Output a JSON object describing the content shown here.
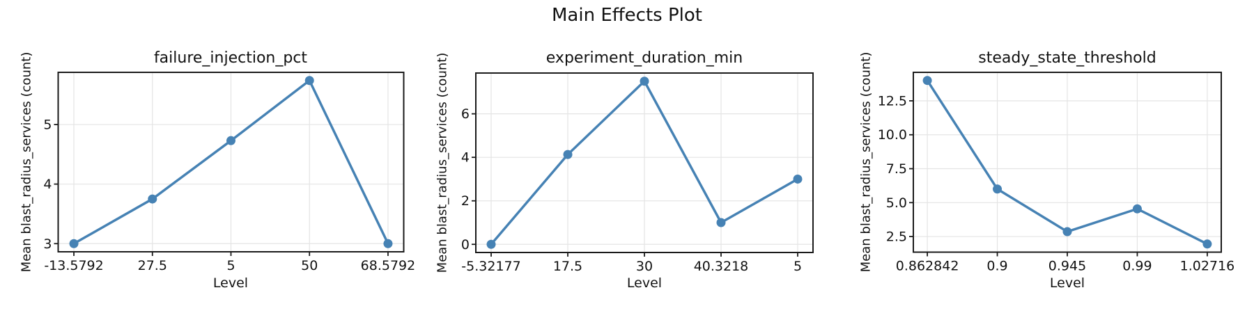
{
  "figure": {
    "suptitle": "Main Effects Plot"
  },
  "style": {
    "line_color": "#4682B4",
    "marker_color": "#4682B4",
    "grid_color": "#e4e4e4",
    "spine_color": "#1a1a1a",
    "tick_color": "#1a1a1a",
    "text_color": "#111111",
    "background": "#ffffff"
  },
  "chart_data": [
    {
      "type": "line",
      "title": "failure_injection_pct",
      "xlabel": "Level",
      "ylabel": "Mean blast_radius_services (count)",
      "categories": [
        "-13.5792",
        "27.5",
        "5",
        "50",
        "68.5792"
      ],
      "values": [
        3.0,
        3.75,
        4.73,
        5.74,
        3.0
      ],
      "yticks": [
        3,
        4,
        5
      ],
      "ytick_labels": [
        "3",
        "4",
        "5"
      ],
      "ylim": [
        2.863,
        5.877
      ],
      "xlim_pad": 0.2,
      "grid": true,
      "legend_position": "none"
    },
    {
      "type": "line",
      "title": "experiment_duration_min",
      "xlabel": "Level",
      "ylabel": "Mean blast_radius_services (count)",
      "categories": [
        "-5.32177",
        "17.5",
        "30",
        "40.3218",
        "5"
      ],
      "values": [
        0.0,
        4.13,
        7.5,
        1.0,
        3.0
      ],
      "yticks": [
        0,
        2,
        4,
        6
      ],
      "ytick_labels": [
        "0",
        "2",
        "4",
        "6"
      ],
      "ylim": [
        -0.375,
        7.875
      ],
      "xlim_pad": 0.2,
      "grid": true,
      "legend_position": "none"
    },
    {
      "type": "line",
      "title": "steady_state_threshold",
      "xlabel": "Level",
      "ylabel": "Mean blast_radius_services (count)",
      "categories": [
        "0.862842",
        "0.9",
        "0.945",
        "0.99",
        "1.02716"
      ],
      "values": [
        14.0,
        6.0,
        2.86,
        4.54,
        1.95
      ],
      "yticks": [
        2.5,
        5.0,
        7.5,
        10.0,
        12.5
      ],
      "ytick_labels": [
        "2.5",
        "5.0",
        "7.5",
        "10.0",
        "12.5"
      ],
      "ylim": [
        1.35,
        14.6
      ],
      "xlim_pad": 0.2,
      "grid": true,
      "legend_position": "none"
    }
  ]
}
